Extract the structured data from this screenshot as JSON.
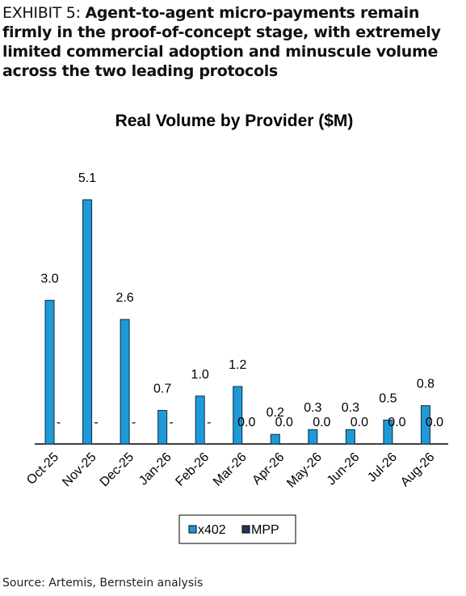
{
  "exhibit_label": "EXHIBIT 5:",
  "exhibit_title": "Agent-to-agent micro-payments remain firmly in the proof-of-concept stage, with extremely limited commercial adoption and minuscule volume across the two leading protocols",
  "source": "Source: Artemis, Bernstein analysis",
  "chart_data": {
    "type": "bar",
    "title": "Real Volume by Provider ($M)",
    "categories": [
      "Oct-25",
      "Nov-25",
      "Dec-25",
      "Jan-26",
      "Feb-26",
      "Mar-26",
      "Apr-26",
      "May-26",
      "Jun-26",
      "Jul-26",
      "Aug-26"
    ],
    "series": [
      {
        "name": "x402",
        "color": "#1f9ad6",
        "values": [
          3.0,
          5.1,
          2.6,
          0.7,
          1.0,
          1.2,
          0.2,
          0.3,
          0.3,
          0.5,
          0.8
        ],
        "value_labels": [
          "3.0",
          "5.1",
          "2.6",
          "0.7",
          "1.0",
          "1.2",
          "0.2",
          "0.3",
          "0.3",
          "0.5",
          "0.8"
        ]
      },
      {
        "name": "MPP",
        "color": "#1f3b5c",
        "values": [
          null,
          null,
          null,
          null,
          null,
          0,
          0,
          0,
          0,
          0,
          0
        ],
        "value_labels": [
          "-",
          "-",
          "-",
          "-",
          "-",
          "0.0",
          "0.0",
          "0.0",
          "0.0",
          "0.0",
          "0.0"
        ]
      }
    ]
  }
}
